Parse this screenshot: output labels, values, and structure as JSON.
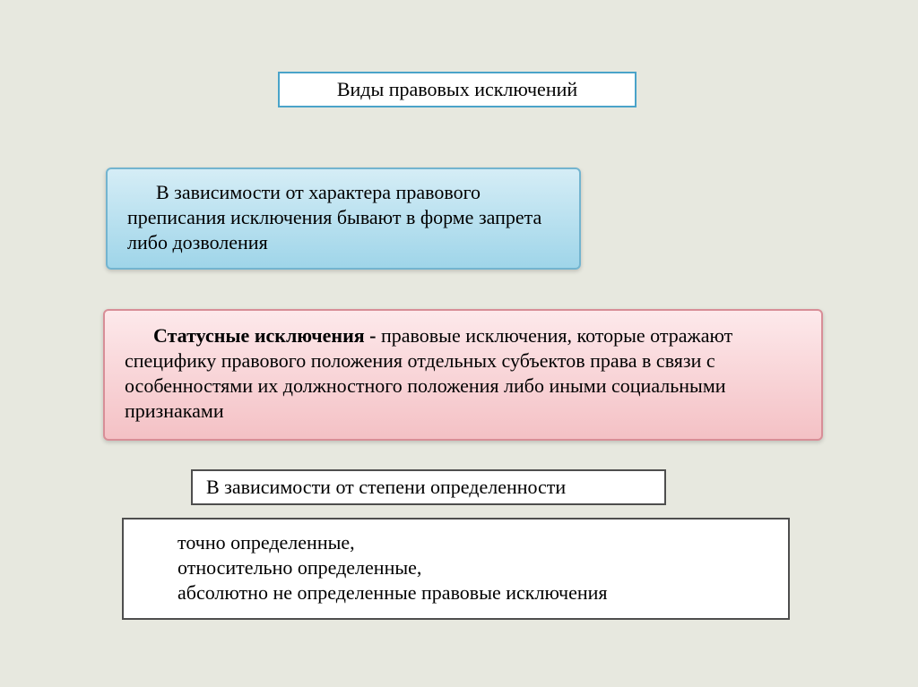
{
  "background_color": "#e7e8df",
  "title": {
    "text": "Виды правовых исключений",
    "border_color": "#4aa3c9",
    "bg_color": "#ffffff",
    "fontsize": 22
  },
  "blue_box": {
    "text": "В зависимости от характера правового преписания исключения бывают в форме запрета либо дозволения",
    "gradient_top": "#d5edf6",
    "gradient_bottom": "#9fd5e9",
    "border_color": "#73b4cf",
    "fontsize": 22
  },
  "pink_box": {
    "bold_part": "Статусные исключения - ",
    "rest": "правовые исключения, которые отражают специфику правового положения отдельных субъектов права в связи с особенностями их должностного положения либо иными социальными признаками",
    "gradient_top": "#fde9eb",
    "gradient_bottom": "#f4c1c5",
    "border_color": "#d88e97",
    "fontsize": 22
  },
  "white_box_1": {
    "text": "В зависимости от степени определенности",
    "border_color": "#4e4e4e",
    "bg_color": "#ffffff",
    "fontsize": 22
  },
  "white_box_2": {
    "line1": "точно определенные,",
    "line2": "относительно определенные,",
    "line3": "абсолютно не определенные правовые исключения",
    "border_color": "#4e4e4e",
    "bg_color": "#ffffff",
    "fontsize": 22
  }
}
